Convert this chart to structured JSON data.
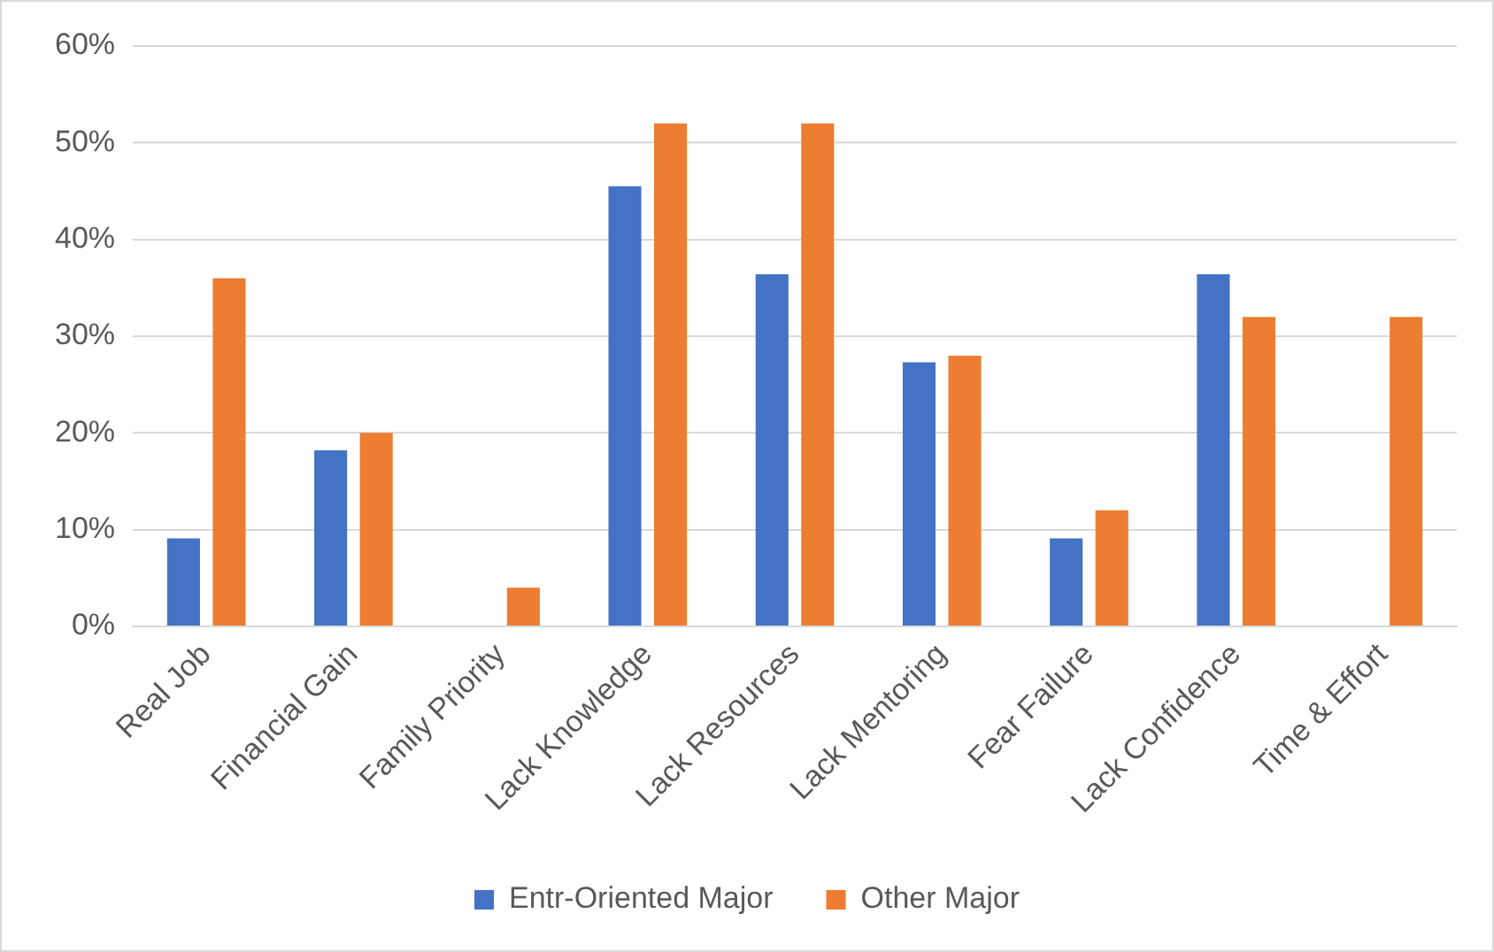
{
  "chart_data": {
    "type": "bar",
    "categories": [
      "Real Job",
      "Financial Gain",
      "Family Priority",
      "Lack Knowledge",
      "Lack Resources",
      "Lack Mentoring",
      "Fear Failure",
      "Lack Confidence",
      "Time & Effort"
    ],
    "series": [
      {
        "name": "Entr-Oriented Major",
        "color": "#4472c4",
        "values": [
          9.1,
          18.2,
          0,
          45.5,
          36.4,
          27.3,
          9.1,
          36.4,
          0
        ]
      },
      {
        "name": "Other Major",
        "color": "#ed7d31",
        "values": [
          36,
          20,
          4,
          52,
          52,
          28,
          12,
          32,
          32
        ]
      }
    ],
    "ylim": [
      0,
      60
    ],
    "yticks": [
      {
        "value": 0,
        "label": "0%"
      },
      {
        "value": 10,
        "label": "10%"
      },
      {
        "value": 20,
        "label": "20%"
      },
      {
        "value": 30,
        "label": "30%"
      },
      {
        "value": 40,
        "label": "40%"
      },
      {
        "value": 50,
        "label": "50%"
      },
      {
        "value": 60,
        "label": "60%"
      }
    ],
    "grid": "y",
    "legend": "bottom"
  }
}
